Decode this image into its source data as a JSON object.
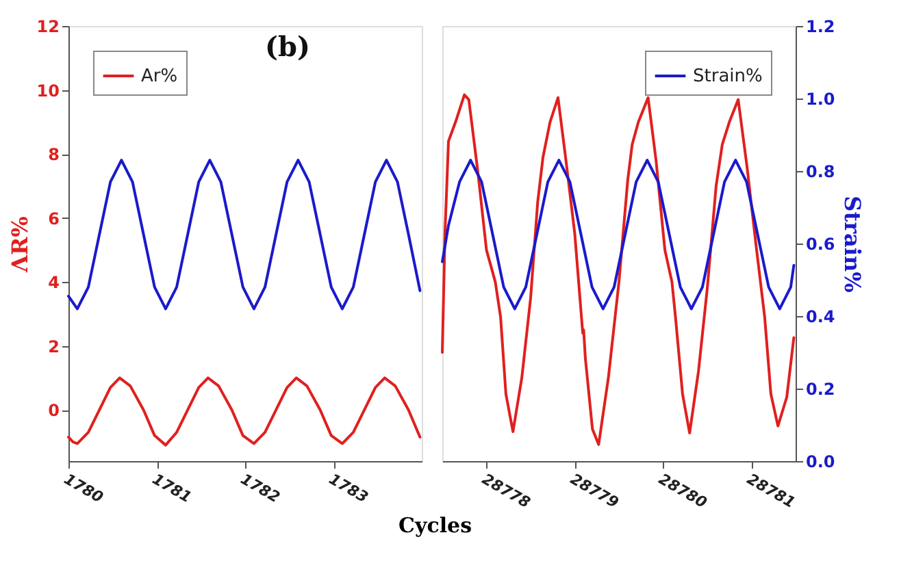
{
  "chart_data": [
    {
      "type": "line",
      "title": "(b)",
      "xlabel": "Cycles",
      "ylabel": "ΛR%",
      "xlim": [
        1780,
        1784
      ],
      "xticks": [
        1780,
        1781,
        1782,
        1783
      ],
      "ylim": [
        -1.6,
        12
      ],
      "yticks": [
        0,
        2,
        4,
        6,
        8,
        10,
        12
      ],
      "y2lim": [
        0,
        1.2
      ],
      "legend": "top left",
      "grid": false,
      "series": [
        {
          "name": "Ar%",
          "color": "#e0201f",
          "x": [
            1780.0,
            1780.05,
            1780.1,
            1780.225,
            1780.35,
            1780.475,
            1780.58,
            1780.7,
            1780.85,
            1780.975,
            1781.1,
            1781.225,
            1781.35,
            1781.475,
            1781.58,
            1781.7,
            1781.85,
            1781.975,
            1782.1,
            1782.225,
            1782.35,
            1782.475,
            1782.58,
            1782.7,
            1782.85,
            1782.975,
            1783.1,
            1783.225,
            1783.35,
            1783.475,
            1783.58,
            1783.7,
            1783.85,
            1783.98
          ],
          "values": [
            -0.85,
            -1.0,
            -1.05,
            -0.7,
            0.0,
            0.7,
            1.0,
            0.75,
            0.0,
            -0.8,
            -1.1,
            -0.7,
            0.0,
            0.7,
            1.0,
            0.75,
            0.0,
            -0.8,
            -1.05,
            -0.7,
            0.0,
            0.7,
            1.0,
            0.75,
            0.0,
            -0.8,
            -1.05,
            -0.7,
            0.0,
            0.7,
            1.0,
            0.75,
            0.0,
            -0.85
          ]
        },
        {
          "color": "#1a1acc",
          "axis": "y2",
          "x": [
            1780.0,
            1780.1,
            1780.225,
            1780.35,
            1780.475,
            1780.6,
            1780.725,
            1780.85,
            1780.975,
            1781.1,
            1781.225,
            1781.35,
            1781.475,
            1781.6,
            1781.725,
            1781.85,
            1781.975,
            1782.1,
            1782.225,
            1782.35,
            1782.475,
            1782.6,
            1782.725,
            1782.85,
            1782.975,
            1783.1,
            1783.225,
            1783.35,
            1783.475,
            1783.6,
            1783.725,
            1783.85,
            1783.98
          ],
          "values": [
            0.455,
            0.42,
            0.48,
            0.625,
            0.77,
            0.83,
            0.77,
            0.625,
            0.48,
            0.42,
            0.48,
            0.625,
            0.77,
            0.83,
            0.77,
            0.625,
            0.48,
            0.42,
            0.48,
            0.625,
            0.77,
            0.83,
            0.77,
            0.625,
            0.48,
            0.42,
            0.48,
            0.625,
            0.77,
            0.83,
            0.77,
            0.625,
            0.47
          ]
        }
      ]
    },
    {
      "type": "line",
      "y2label": "Strain%",
      "xlim": [
        28777.5,
        28781.5
      ],
      "xticks": [
        28778,
        28779,
        28780,
        28781
      ],
      "ylim": [
        -1.6,
        12
      ],
      "y2lim": [
        0,
        1.2
      ],
      "y2ticks": [
        {
          "value": 0,
          "label": "0.0"
        },
        0.2,
        0.4,
        0.6,
        0.8,
        {
          "value": 1,
          "label": "1.0"
        },
        1.2
      ],
      "legend": "top right",
      "grid": false,
      "series": [
        {
          "color": "#e0201f",
          "x": [
            28777.5,
            28777.53,
            28777.57,
            28777.65,
            28777.75,
            28777.8,
            28777.9,
            28778.0,
            28778.1,
            28778.16,
            28778.22,
            28778.3,
            28778.4,
            28778.5,
            28778.58,
            28778.64,
            28778.72,
            28778.81,
            28778.9,
            28779.0,
            28779.09,
            28779.1,
            28779.12,
            28779.2,
            28779.27,
            28779.38,
            28779.5,
            28779.6,
            28779.65,
            28779.72,
            28779.83,
            28779.92,
            28780.02,
            28780.1,
            28780.14,
            28780.22,
            28780.3,
            28780.4,
            28780.5,
            28780.6,
            28780.67,
            28780.75,
            28780.85,
            28780.95,
            28781.05,
            28781.15,
            28781.22,
            28781.3,
            28781.4,
            28781.48
          ],
          "values": [
            1.8,
            5.5,
            8.4,
            9.0,
            9.85,
            9.7,
            7.5,
            5.0,
            4.0,
            2.9,
            0.5,
            -0.68,
            1.0,
            3.5,
            6.5,
            7.9,
            9.0,
            9.76,
            7.8,
            5.5,
            2.4,
            2.5,
            1.6,
            -0.6,
            -1.08,
            1.0,
            4.0,
            7.2,
            8.3,
            9.0,
            9.76,
            7.8,
            5.0,
            4.0,
            2.9,
            0.5,
            -0.72,
            1.2,
            3.8,
            7.0,
            8.3,
            9.0,
            9.7,
            7.6,
            5.2,
            2.9,
            0.5,
            -0.5,
            0.4,
            2.26
          ]
        },
        {
          "name": "Strain%",
          "color": "#1a1acc",
          "axis": "y2",
          "x": [
            28777.5,
            28777.57,
            28777.695,
            28777.82,
            28777.945,
            28778.07,
            28778.195,
            28778.32,
            28778.445,
            28778.57,
            28778.695,
            28778.82,
            28778.945,
            28779.07,
            28779.195,
            28779.32,
            28779.445,
            28779.57,
            28779.695,
            28779.82,
            28779.945,
            28780.07,
            28780.195,
            28780.32,
            28780.445,
            28780.57,
            28780.695,
            28780.82,
            28780.945,
            28781.07,
            28781.195,
            28781.32,
            28781.445,
            28781.48
          ],
          "values": [
            0.55,
            0.65,
            0.77,
            0.83,
            0.77,
            0.625,
            0.48,
            0.42,
            0.48,
            0.625,
            0.77,
            0.83,
            0.77,
            0.625,
            0.48,
            0.42,
            0.48,
            0.625,
            0.77,
            0.83,
            0.77,
            0.625,
            0.48,
            0.42,
            0.48,
            0.625,
            0.77,
            0.83,
            0.77,
            0.625,
            0.48,
            0.42,
            0.48,
            0.54
          ]
        }
      ]
    }
  ]
}
